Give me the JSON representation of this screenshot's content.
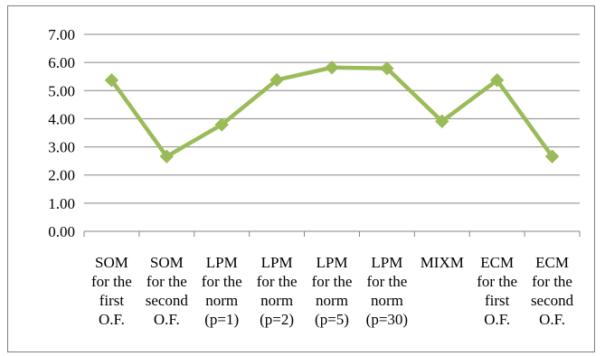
{
  "chart_data": {
    "type": "line",
    "title": "",
    "xlabel": "",
    "ylabel": "",
    "ylim": [
      0,
      7
    ],
    "yticks": [
      "0.00",
      "1.00",
      "2.00",
      "3.00",
      "4.00",
      "5.00",
      "6.00",
      "7.00"
    ],
    "grid": "horizontal",
    "legend": "none",
    "categories": [
      [
        "SOM",
        "for the",
        "first",
        "O.F."
      ],
      [
        "SOM",
        "for the",
        "second",
        "O.F."
      ],
      [
        "LPM",
        "for the",
        "norm",
        "(p=1)"
      ],
      [
        "LPM",
        "for the",
        "norm",
        "(p=2)"
      ],
      [
        "LPM",
        "for the",
        "norm",
        "(p=5)"
      ],
      [
        "LPM",
        "for the",
        "norm",
        "(p=30)"
      ],
      [
        "MIXM"
      ],
      [
        "ECM",
        "for the",
        "first",
        "O.F."
      ],
      [
        "ECM",
        "for the",
        "second",
        "O.F."
      ]
    ],
    "series": [
      {
        "values": [
          5.37,
          2.66,
          3.79,
          5.38,
          5.82,
          5.79,
          3.91,
          5.37,
          2.66
        ],
        "color": "#9bbb59",
        "marker": "diamond"
      }
    ],
    "colors": {
      "grid": "#868686",
      "axis": "#868686",
      "line": "#9bbb59",
      "marker": "#9bbb59"
    }
  }
}
